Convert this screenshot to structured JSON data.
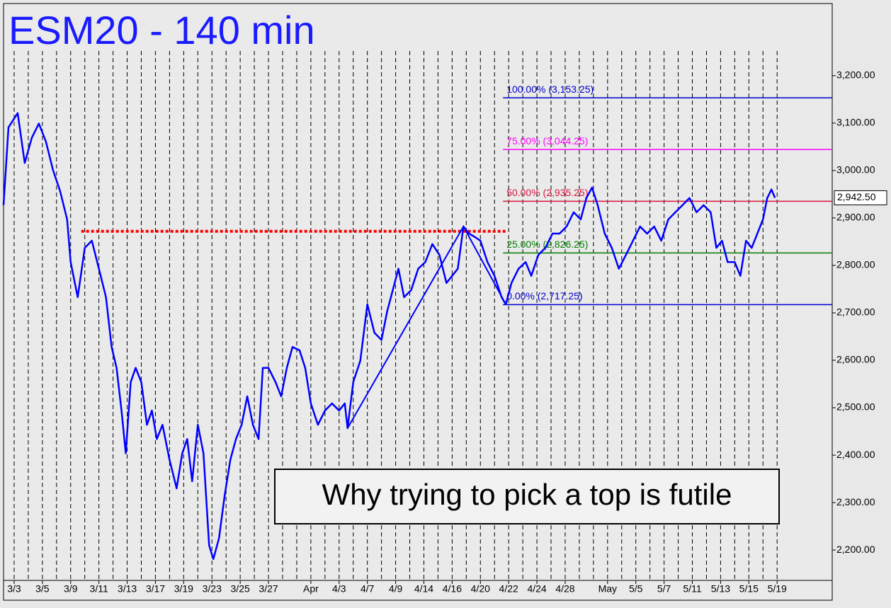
{
  "chart_data": {
    "type": "line",
    "title": "ESM20 - 140 min",
    "annotation": "Why trying to pick a top is futile",
    "color": "#0000ff",
    "xlim": [
      -0.75,
      57.9
    ],
    "ylim": [
      2136,
      3352
    ],
    "xticks": [
      {
        "value": 0,
        "label": "3/3"
      },
      {
        "value": 2,
        "label": "3/5"
      },
      {
        "value": 4,
        "label": "3/9"
      },
      {
        "value": 6,
        "label": "3/11"
      },
      {
        "value": 8,
        "label": "3/13"
      },
      {
        "value": 10,
        "label": "3/17"
      },
      {
        "value": 12,
        "label": "3/19"
      },
      {
        "value": 14,
        "label": "3/23"
      },
      {
        "value": 16,
        "label": "3/25"
      },
      {
        "value": 18,
        "label": "3/27"
      },
      {
        "value": 21,
        "label": "Apr"
      },
      {
        "value": 23,
        "label": "4/3"
      },
      {
        "value": 25,
        "label": "4/7"
      },
      {
        "value": 27,
        "label": "4/9"
      },
      {
        "value": 29,
        "label": "4/14"
      },
      {
        "value": 31,
        "label": "4/16"
      },
      {
        "value": 33,
        "label": "4/20"
      },
      {
        "value": 35,
        "label": "4/22"
      },
      {
        "value": 37,
        "label": "4/24"
      },
      {
        "value": 39,
        "label": "4/28"
      },
      {
        "value": 42,
        "label": "May"
      },
      {
        "value": 44,
        "label": "5/5"
      },
      {
        "value": 46,
        "label": "5/7"
      },
      {
        "value": 48,
        "label": "5/11"
      },
      {
        "value": 50,
        "label": "5/13"
      },
      {
        "value": 52,
        "label": "5/15"
      },
      {
        "value": 54,
        "label": "5/19"
      }
    ],
    "x_minor_ticks": [
      1,
      3,
      5,
      7,
      9,
      11,
      13,
      15,
      17,
      19,
      20,
      22,
      24,
      26,
      28,
      30,
      32,
      34,
      36,
      38,
      40,
      41,
      43,
      45,
      47,
      49,
      51,
      53
    ],
    "yticks": [
      {
        "value": 2200,
        "label": "2,200.00"
      },
      {
        "value": 2300,
        "label": "2,300.00"
      },
      {
        "value": 2400,
        "label": "2,400.00"
      },
      {
        "value": 2500,
        "label": "2,500.00"
      },
      {
        "value": 2600,
        "label": "2,600.00"
      },
      {
        "value": 2700,
        "label": "2,700.00"
      },
      {
        "value": 2800,
        "label": "2,800.00"
      },
      {
        "value": 2900,
        "label": "2,900.00"
      },
      {
        "value": 3000,
        "label": "3,000.00"
      },
      {
        "value": 3100,
        "label": "3,100.00"
      },
      {
        "value": 3200,
        "label": "3,200.00"
      }
    ],
    "x": [
      -0.75,
      -0.4,
      0.25,
      0.75,
      1.25,
      1.75,
      2.25,
      2.75,
      3.25,
      3.75,
      4.0,
      4.5,
      5.0,
      5.5,
      6.0,
      6.5,
      6.9,
      7.25,
      7.6,
      7.9,
      8.25,
      8.6,
      9.0,
      9.4,
      9.75,
      10.1,
      10.5,
      11.0,
      11.5,
      11.9,
      12.25,
      12.6,
      13.0,
      13.4,
      13.8,
      14.1,
      14.5,
      14.9,
      15.3,
      15.7,
      16.1,
      16.5,
      16.9,
      17.3,
      17.6,
      18.0,
      18.5,
      18.9,
      19.3,
      19.7,
      20.2,
      20.6,
      21.0,
      21.5,
      22.0,
      22.5,
      23.0,
      23.4,
      23.6,
      24.0,
      24.5,
      25.0,
      25.5,
      26.0,
      26.4,
      26.8,
      27.2,
      27.6,
      28.1,
      28.6,
      29.1,
      29.6,
      30.1,
      30.6,
      31.0,
      31.4,
      31.8,
      32.2,
      32.6,
      33.0,
      33.5,
      34.0,
      34.5,
      34.8,
      35.2,
      35.7,
      36.2,
      36.6,
      37.1,
      37.6,
      38.1,
      38.6,
      39.1,
      39.6,
      40.1,
      40.5,
      40.9,
      41.3,
      41.8,
      42.3,
      42.8,
      43.3,
      43.8,
      44.3,
      44.8,
      45.3,
      45.8,
      46.3,
      46.8,
      47.3,
      47.8,
      48.3,
      48.8,
      49.3,
      49.7,
      50.1,
      50.5,
      51.0,
      51.4,
      51.8,
      52.2,
      52.6,
      53.0,
      53.3,
      53.6,
      53.85
    ],
    "values": [
      2927,
      3091,
      3121,
      3016,
      3069,
      3099,
      3061,
      3001,
      2957,
      2897,
      2807,
      2733,
      2837,
      2852,
      2793,
      2733,
      2628,
      2584,
      2494,
      2404,
      2554,
      2584,
      2554,
      2464,
      2494,
      2434,
      2464,
      2390,
      2330,
      2404,
      2434,
      2345,
      2464,
      2404,
      2210,
      2181,
      2225,
      2315,
      2390,
      2434,
      2464,
      2524,
      2464,
      2434,
      2584,
      2584,
      2554,
      2524,
      2584,
      2628,
      2621,
      2584,
      2509,
      2464,
      2494,
      2509,
      2494,
      2509,
      2457,
      2554,
      2599,
      2718,
      2658,
      2643,
      2703,
      2748,
      2793,
      2733,
      2748,
      2793,
      2807,
      2845,
      2822,
      2763,
      2778,
      2793,
      2882,
      2867,
      2860,
      2852,
      2807,
      2778,
      2733,
      2718,
      2763,
      2793,
      2807,
      2778,
      2822,
      2837,
      2867,
      2867,
      2882,
      2912,
      2897,
      2942,
      2964,
      2927,
      2867,
      2837,
      2793,
      2822,
      2852,
      2882,
      2867,
      2882,
      2852,
      2897,
      2912,
      2927,
      2942,
      2912,
      2927,
      2912,
      2837,
      2852,
      2807,
      2807,
      2778,
      2852,
      2837,
      2867,
      2897,
      2942,
      2960,
      2942.5
    ],
    "last_price": {
      "value": 2942.5,
      "label": "2,942.50"
    },
    "pattern": {
      "color": "#0000ff",
      "x": [
        23.6,
        31.8,
        34.8
      ],
      "values": [
        2457,
        2882,
        2718
      ]
    },
    "resistance": {
      "color": "#ff0000",
      "value": 2872,
      "x": [
        4.75,
        34.9
      ]
    },
    "fib_start_x": 34.6,
    "levels": [
      {
        "label": "100.00% (3,153.25)",
        "value": 3153.25,
        "color": "#0000cc"
      },
      {
        "label": "75.00% (3,044.25)",
        "value": 3044.25,
        "color": "#ff00ff"
      },
      {
        "label": "50.00% (2,935.25)",
        "value": 2935.25,
        "color": "#dc143c"
      },
      {
        "label": "25.00% (2,826.25)",
        "value": 2826.25,
        "color": "#008000"
      },
      {
        "label": "0.00% (2,717.25)",
        "value": 2717.25,
        "color": "#0000cc"
      }
    ]
  }
}
